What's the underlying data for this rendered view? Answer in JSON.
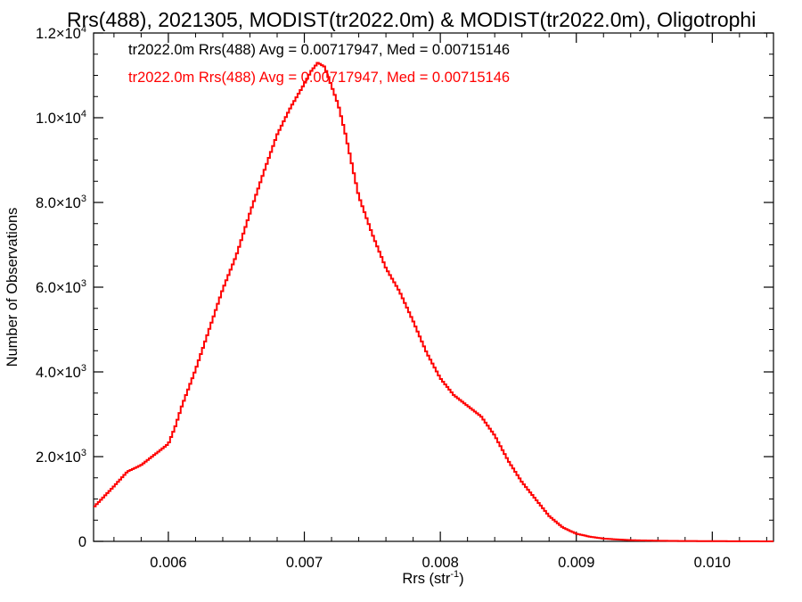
{
  "chart_data": {
    "type": "line",
    "title": "Rrs(488), 2021305, MODIST(tr2022.0m) & MODIST(tr2022.0m), Oligotrophi",
    "xlabel_main": "Rrs (str",
    "xlabel_sup": "-1",
    "xlabel_close": ")",
    "ylabel": "Number of Observations",
    "xlim": [
      0.00545,
      0.01045
    ],
    "ylim": [
      0,
      12000
    ],
    "x_ticks": [
      {
        "value": 0.006,
        "label": "0.006"
      },
      {
        "value": 0.007,
        "label": "0.007"
      },
      {
        "value": 0.008,
        "label": "0.008"
      },
      {
        "value": 0.009,
        "label": "0.009"
      },
      {
        "value": 0.01,
        "label": "0.010"
      }
    ],
    "y_ticks": [
      {
        "value": 0,
        "mant": "0",
        "exp": ""
      },
      {
        "value": 2000,
        "mant": "2.0×10",
        "exp": "3"
      },
      {
        "value": 4000,
        "mant": "4.0×10",
        "exp": "3"
      },
      {
        "value": 6000,
        "mant": "6.0×10",
        "exp": "3"
      },
      {
        "value": 8000,
        "mant": "8.0×10",
        "exp": "3"
      },
      {
        "value": 10000,
        "mant": "1.0×10",
        "exp": "4"
      },
      {
        "value": 12000,
        "mant": "1.2×10",
        "exp": "4"
      }
    ],
    "annotations": [
      {
        "text": "tr2022.0m Rrs(488) Avg = 0.00717947, Med = 0.00715146",
        "color": "#000000"
      },
      {
        "text": "tr2022.0m Rrs(488) Avg = 0.00717947, Med = 0.00715146",
        "color": "#ff0000"
      }
    ],
    "series": [
      {
        "color": "#ff0000",
        "style": "step",
        "x": [
          0.00545,
          0.0056,
          0.0057,
          0.0058,
          0.0059,
          0.006,
          0.00605,
          0.0061,
          0.0062,
          0.0063,
          0.0064,
          0.0065,
          0.0066,
          0.0067,
          0.0068,
          0.0069,
          0.007,
          0.00705,
          0.0071,
          0.00715,
          0.0072,
          0.00725,
          0.0073,
          0.0074,
          0.0075,
          0.0076,
          0.0077,
          0.0078,
          0.0079,
          0.008,
          0.0081,
          0.0082,
          0.0083,
          0.0084,
          0.0085,
          0.0086,
          0.0087,
          0.0088,
          0.0089,
          0.009,
          0.0091,
          0.0092,
          0.0093,
          0.0094,
          0.0095,
          0.0096,
          0.0097,
          0.0098,
          0.01,
          0.0102,
          0.01045
        ],
        "values": [
          800,
          1300,
          1650,
          1800,
          2050,
          2300,
          2700,
          3200,
          4050,
          5000,
          5950,
          6750,
          7750,
          8700,
          9600,
          10250,
          10800,
          11100,
          11300,
          11200,
          10750,
          10300,
          9650,
          8150,
          7250,
          6450,
          5900,
          5200,
          4450,
          3850,
          3450,
          3200,
          2950,
          2500,
          1900,
          1400,
          1000,
          600,
          330,
          180,
          110,
          65,
          45,
          28,
          20,
          15,
          10,
          8,
          5,
          3,
          0
        ]
      }
    ]
  }
}
